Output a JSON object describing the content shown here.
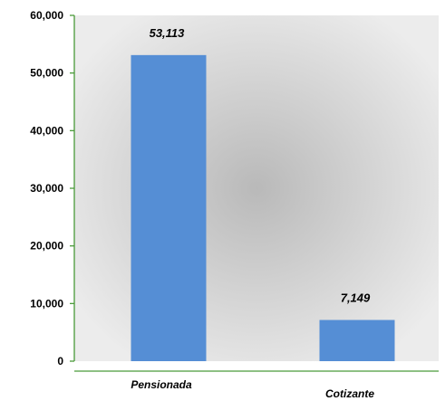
{
  "chart_data": {
    "type": "bar",
    "categories": [
      "Pensionada",
      "Cotizante"
    ],
    "values": [
      53113,
      7149
    ],
    "data_labels": [
      "53,113",
      "7,149"
    ],
    "ylim": [
      0,
      60000
    ],
    "yticks": [
      0,
      10000,
      20000,
      30000,
      40000,
      50000,
      60000
    ],
    "ytick_labels": [
      "0",
      "10,000",
      "20,000",
      "30,000",
      "40,000",
      "50,000",
      "60,000"
    ],
    "title": "",
    "xlabel": "",
    "ylabel": "",
    "grid": false,
    "legend": "none",
    "colors": {
      "bar": "#558ed5",
      "axis": "#4a9a3a",
      "plot_bg_edge": "#ececec",
      "plot_bg_center": "#b9b9b9"
    }
  }
}
